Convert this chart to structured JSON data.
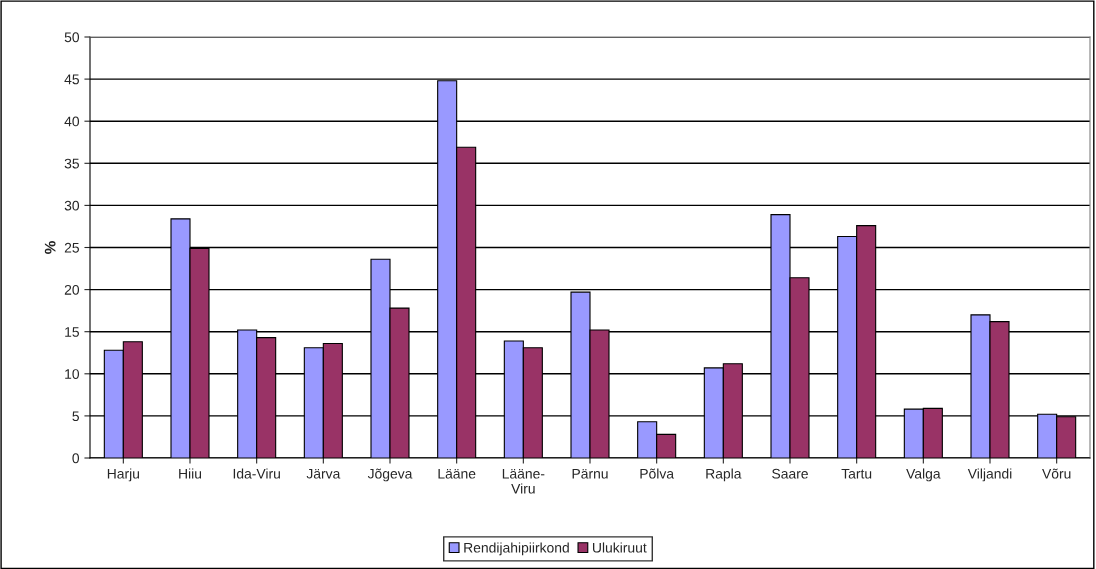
{
  "chart_data": {
    "type": "bar",
    "ylabel": "%",
    "categories": [
      "Harju",
      "Hiiu",
      "Ida-Viru",
      "Järva",
      "Jõgeva",
      "Lääne",
      "Lääne-\nViru",
      "Pärnu",
      "Põlva",
      "Rapla",
      "Saare",
      "Tartu",
      "Valga",
      "Viljandi",
      "Võru"
    ],
    "series": [
      {
        "name": "Rendijahipiirkond",
        "color": "#9999ff",
        "values": [
          12.8,
          28.4,
          15.2,
          13.1,
          23.6,
          44.8,
          13.9,
          19.7,
          4.3,
          10.7,
          28.9,
          26.3,
          5.8,
          17.0,
          5.2
        ]
      },
      {
        "name": "Ulukiruut",
        "color": "#993366",
        "values": [
          13.8,
          24.9,
          14.3,
          13.6,
          17.8,
          36.9,
          13.1,
          15.2,
          2.8,
          11.2,
          21.4,
          27.6,
          5.9,
          16.2,
          4.9
        ]
      }
    ],
    "ylim": [
      0,
      50
    ],
    "yticks": [
      0,
      5,
      10,
      15,
      20,
      25,
      30,
      35,
      40,
      45,
      50
    ],
    "grid": "y",
    "legend": "bottom"
  }
}
